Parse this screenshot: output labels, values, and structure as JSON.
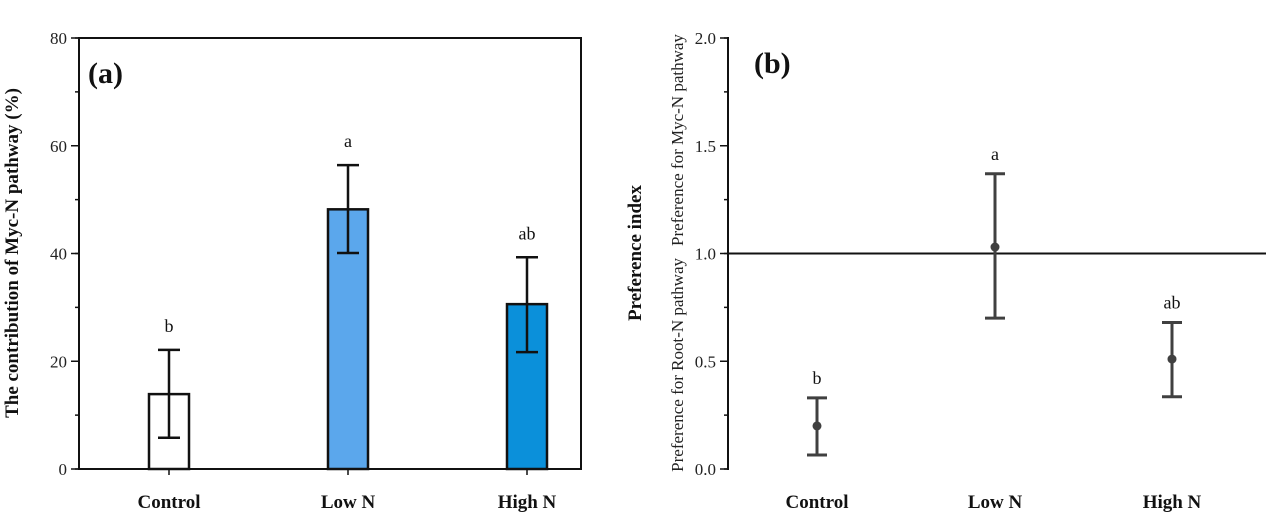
{
  "chart_data": [
    {
      "type": "bar",
      "panel_label": "(a)",
      "title": "",
      "xlabel": "",
      "ylabel": "The contribution of Myc-N pathway (%)",
      "ylim": [
        0,
        80
      ],
      "yticks": [
        0,
        20,
        40,
        60,
        80
      ],
      "ytick_labels": [
        "0",
        "20",
        "40",
        "60",
        "80"
      ],
      "y_minor_step": 10,
      "grid": false,
      "frame": "box",
      "categories": [
        "Control",
        "Low N",
        "High N"
      ],
      "values": [
        13.9,
        48.2,
        30.6
      ],
      "error_low": [
        5.8,
        40.1,
        21.7
      ],
      "error_high": [
        22.1,
        56.4,
        39.3
      ],
      "significance": [
        "b",
        "a",
        "ab"
      ],
      "bar_colors": [
        "#ffffff",
        "#5ba7ec",
        "#0b90da"
      ],
      "edge_color": "#111111"
    },
    {
      "type": "scatter",
      "panel_label": "(b)",
      "title": "",
      "xlabel": "",
      "ylabel": "Preference index",
      "ylabel_upper": "Preference for Myc-N pathway",
      "ylabel_lower": "Preference for Root-N pathway",
      "ylim": [
        0,
        2.0
      ],
      "yticks": [
        0,
        0.5,
        1.0,
        1.5,
        2.0
      ],
      "ytick_labels": [
        "0.0",
        "0.5",
        "1.0",
        "1.5",
        "2.0"
      ],
      "y_minor_step": 0.25,
      "grid": false,
      "reference_line_y": 1.0,
      "categories": [
        "Control",
        "Low N",
        "High N"
      ],
      "values": [
        0.2,
        1.03,
        0.51
      ],
      "error_low": [
        0.065,
        0.7,
        0.335
      ],
      "error_high": [
        0.33,
        1.37,
        0.68
      ],
      "significance": [
        "b",
        "a",
        "ab"
      ],
      "marker_color": "#404040"
    }
  ]
}
